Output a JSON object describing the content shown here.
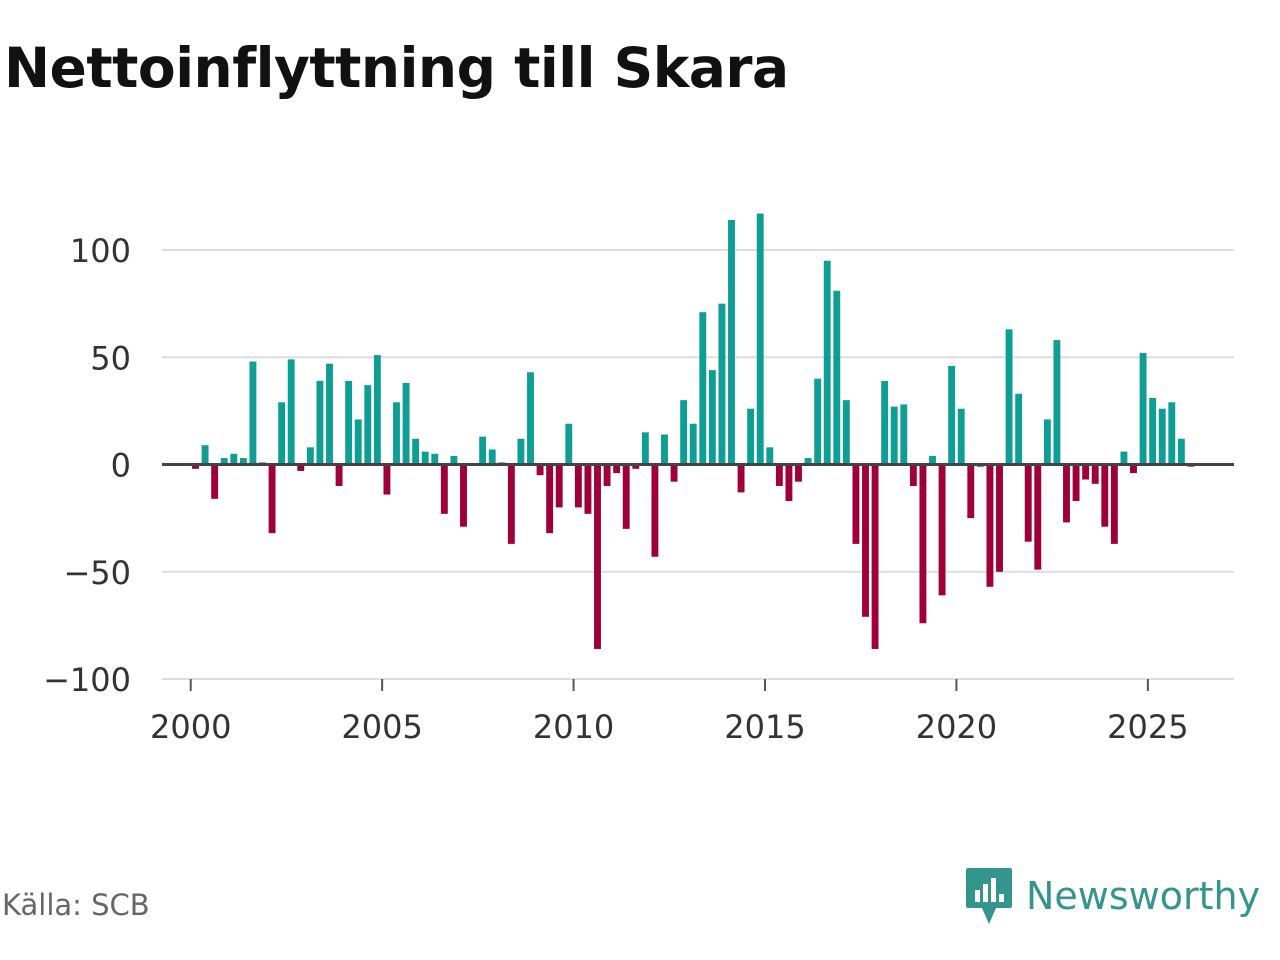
{
  "title": "Nettoinflyttning till Skara",
  "source": "Källa: SCB",
  "brand": "Newsworthy",
  "colors": {
    "positive": "#0f9e94",
    "negative": "#9e0037",
    "grid": "#dddddd",
    "axis": "#444444",
    "brand": "#34958c"
  },
  "chart_data": {
    "type": "bar",
    "title": "Nettoinflyttning till Skara",
    "xlabel": "",
    "ylabel": "",
    "ylim": [
      -100,
      100
    ],
    "xlim": [
      1999.25,
      2027.25
    ],
    "y_ticks": [
      100,
      50,
      0,
      -50,
      -100
    ],
    "y_tick_labels": [
      "100",
      "50",
      "0",
      "−50",
      "−100"
    ],
    "x_ticks": [
      2000,
      2005,
      2010,
      2015,
      2020,
      2025
    ],
    "x_tick_labels": [
      "2000",
      "2005",
      "2010",
      "2015",
      "2020",
      "2025"
    ],
    "start": 2000.125,
    "step": 0.25,
    "values": [
      -2,
      9,
      -16,
      3,
      5,
      3,
      48,
      1,
      -32,
      29,
      49,
      -3,
      8,
      39,
      47,
      -10,
      39,
      21,
      37,
      51,
      -14,
      29,
      38,
      12,
      6,
      5,
      -23,
      4,
      -29,
      0,
      13,
      7,
      1,
      -37,
      12,
      43,
      -5,
      -32,
      -20,
      19,
      -20,
      -23,
      -86,
      -10,
      -4,
      -30,
      -2,
      15,
      -43,
      14,
      -8,
      30,
      19,
      71,
      44,
      75,
      114,
      -13,
      26,
      117,
      8,
      -10,
      -17,
      -8,
      3,
      40,
      95,
      81,
      30,
      -37,
      -71,
      -86,
      39,
      27,
      28,
      -10,
      -74,
      4,
      -61,
      46,
      26,
      -25,
      -1,
      -57,
      -50,
      63,
      33,
      -36,
      -49,
      21,
      58,
      -27,
      -17,
      -7,
      -9,
      -29,
      -37,
      6,
      -4,
      52,
      31,
      26,
      29,
      12,
      -1
    ]
  }
}
